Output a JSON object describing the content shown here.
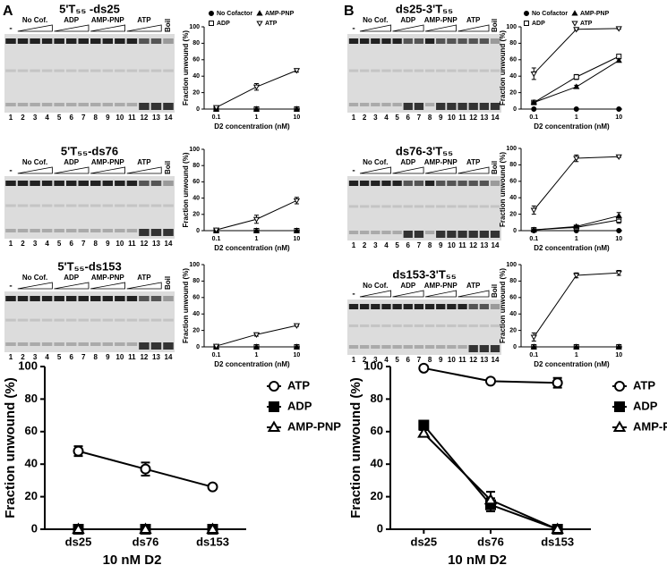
{
  "panels": [
    "A",
    "B"
  ],
  "gels": [
    {
      "title": "5'T₅₅ -ds25",
      "minus": "-",
      "groups": [
        "No Cof.",
        "ADP",
        "AMP-PNP",
        "ATP"
      ],
      "boil": "Boil",
      "lanes": [
        "1",
        "2",
        "3",
        "4",
        "5",
        "6",
        "7",
        "8",
        "9",
        "10",
        "11",
        "12",
        "13",
        "14"
      ]
    },
    {
      "title": "5'T₅₅-ds76",
      "minus": "-",
      "groups": [
        "No Cof.",
        "ADP",
        "AMP-PNP",
        "ATP"
      ],
      "boil": "Boil",
      "lanes": [
        "1",
        "2",
        "3",
        "4",
        "5",
        "6",
        "7",
        "8",
        "9",
        "10",
        "11",
        "12",
        "13",
        "14"
      ]
    },
    {
      "title": "5'T₅₅-ds153",
      "minus": "-",
      "groups": [
        "No Cof.",
        "ADP",
        "AMP-PNP",
        "ATP"
      ],
      "boil": "Boil",
      "lanes": [
        "1",
        "2",
        "3",
        "4",
        "5",
        "6",
        "7",
        "8",
        "9",
        "10",
        "11",
        "12",
        "13",
        "14"
      ]
    },
    {
      "title": "ds25-3'T₅₅",
      "minus": "-",
      "groups": [
        "No Cof.",
        "ADP",
        "AMP-PNP",
        "ATP"
      ],
      "boil": "Boil",
      "lanes": [
        "1",
        "2",
        "3",
        "4",
        "5",
        "6",
        "7",
        "8",
        "9",
        "10",
        "11",
        "12",
        "13",
        "14"
      ]
    },
    {
      "title": "ds76-3'T₅₅",
      "minus": "-",
      "groups": [
        "No Cof.",
        "ADP",
        "AMP-PNP",
        "ATP"
      ],
      "boil": "Boil",
      "lanes": [
        "1",
        "2",
        "3",
        "4",
        "5",
        "6",
        "7",
        "8",
        "9",
        "10",
        "11",
        "12",
        "13",
        "14"
      ]
    },
    {
      "title": "ds153-3'T₅₅",
      "minus": "-",
      "groups": [
        "No Cof.",
        "ADP",
        "AMP-PNP",
        "ATP"
      ],
      "boil": "Boil",
      "lanes": [
        "1",
        "2",
        "3",
        "4",
        "5",
        "6",
        "7",
        "8",
        "9",
        "10",
        "11",
        "12",
        "13",
        "14"
      ]
    }
  ],
  "chart_data": [
    {
      "type": "line",
      "xscale": "log",
      "legend": "top",
      "ylabel": "Fraction unwound (%)",
      "xlabel": "D2 concentration (nM)",
      "x": [
        0.1,
        1,
        10
      ],
      "xlim": [
        0.05,
        12
      ],
      "xticks": [
        0.1,
        1,
        10
      ],
      "ylim": [
        0,
        100
      ],
      "yticks": [
        0,
        20,
        40,
        60,
        80,
        100
      ],
      "series": [
        {
          "name": "No Cofactor",
          "color": "#000000",
          "marker": "filled-circle",
          "values": [
            0,
            0,
            0
          ]
        },
        {
          "name": "ADP",
          "color": "#000000",
          "marker": "open-square",
          "values": [
            0,
            0,
            0
          ]
        },
        {
          "name": "AMP-PNP",
          "color": "#000000",
          "marker": "filled-triangle",
          "values": [
            0,
            0,
            0
          ]
        },
        {
          "name": "ATP",
          "color": "#000000",
          "marker": "open-down-triangle",
          "values": [
            2,
            27,
            47
          ],
          "errors": [
            1,
            4,
            2
          ]
        }
      ]
    },
    {
      "type": "line",
      "xscale": "log",
      "ylabel": "Fraction unwound (%)",
      "xlabel": "D2 concentration (nM)",
      "x": [
        0.1,
        1,
        10
      ],
      "xlim": [
        0.05,
        12
      ],
      "xticks": [
        0.1,
        1,
        10
      ],
      "ylim": [
        0,
        100
      ],
      "yticks": [
        0,
        20,
        40,
        60,
        80,
        100
      ],
      "series": [
        {
          "name": "No Cofactor",
          "color": "#000000",
          "marker": "filled-circle",
          "values": [
            0,
            0,
            0
          ]
        },
        {
          "name": "ADP",
          "color": "#000000",
          "marker": "open-square",
          "values": [
            0,
            0,
            0
          ]
        },
        {
          "name": "AMP-PNP",
          "color": "#000000",
          "marker": "filled-triangle",
          "values": [
            0,
            0,
            0
          ]
        },
        {
          "name": "ATP",
          "color": "#000000",
          "marker": "open-down-triangle",
          "values": [
            1,
            14,
            37
          ],
          "errors": [
            1,
            5,
            4
          ]
        }
      ]
    },
    {
      "type": "line",
      "xscale": "log",
      "ylabel": "Fraction unwound (%)",
      "xlabel": "D2 concentration (nM)",
      "x": [
        0.1,
        1,
        10
      ],
      "xlim": [
        0.05,
        12
      ],
      "xticks": [
        0.1,
        1,
        10
      ],
      "ylim": [
        0,
        100
      ],
      "yticks": [
        0,
        20,
        40,
        60,
        80,
        100
      ],
      "series": [
        {
          "name": "No Cofactor",
          "color": "#000000",
          "marker": "filled-circle",
          "values": [
            0,
            0,
            0
          ]
        },
        {
          "name": "ADP",
          "color": "#000000",
          "marker": "open-square",
          "values": [
            0,
            0,
            0
          ]
        },
        {
          "name": "AMP-PNP",
          "color": "#000000",
          "marker": "filled-triangle",
          "values": [
            0,
            0,
            0
          ]
        },
        {
          "name": "ATP",
          "color": "#000000",
          "marker": "open-down-triangle",
          "values": [
            1,
            15,
            26
          ],
          "errors": [
            1,
            2,
            1
          ]
        }
      ]
    },
    {
      "type": "line",
      "xscale": "log",
      "legend": "top",
      "ylabel": "Fraction unwound (%)",
      "xlabel": "D2 concentration (nM)",
      "x": [
        0.1,
        1,
        10
      ],
      "xlim": [
        0.05,
        12
      ],
      "xticks": [
        0.1,
        1,
        10
      ],
      "ylim": [
        0,
        100
      ],
      "yticks": [
        0,
        20,
        40,
        60,
        80,
        100
      ],
      "series": [
        {
          "name": "No Cofactor",
          "color": "#000000",
          "marker": "filled-circle",
          "values": [
            0,
            0,
            0
          ]
        },
        {
          "name": "ADP",
          "color": "#000000",
          "marker": "open-square",
          "values": [
            8,
            39,
            64
          ],
          "errors": [
            1,
            3,
            2
          ]
        },
        {
          "name": "AMP-PNP",
          "color": "#000000",
          "marker": "filled-triangle",
          "values": [
            8,
            27,
            59
          ],
          "errors": [
            1,
            2,
            2
          ]
        },
        {
          "name": "ATP",
          "color": "#000000",
          "marker": "open-down-triangle",
          "values": [
            43,
            97,
            98
          ],
          "errors": [
            7,
            1,
            1
          ]
        }
      ]
    },
    {
      "type": "line",
      "xscale": "log",
      "ylabel": "Fraction unwound (%)",
      "xlabel": "D2 concentration (nM)",
      "x": [
        0.1,
        1,
        10
      ],
      "xlim": [
        0.05,
        12
      ],
      "xticks": [
        0.1,
        1,
        10
      ],
      "ylim": [
        0,
        100
      ],
      "yticks": [
        0,
        20,
        40,
        60,
        80,
        100
      ],
      "series": [
        {
          "name": "No Cofactor",
          "color": "#000000",
          "marker": "filled-circle",
          "values": [
            0,
            0,
            0
          ]
        },
        {
          "name": "ADP",
          "color": "#000000",
          "marker": "open-square",
          "values": [
            1,
            4,
            13
          ],
          "errors": [
            1,
            1,
            4
          ]
        },
        {
          "name": "AMP-PNP",
          "color": "#000000",
          "marker": "filled-triangle",
          "values": [
            1,
            5,
            18
          ],
          "errors": [
            1,
            1,
            4
          ]
        },
        {
          "name": "ATP",
          "color": "#000000",
          "marker": "open-down-triangle",
          "values": [
            25,
            88,
            90
          ],
          "errors": [
            5,
            4,
            1
          ]
        }
      ]
    },
    {
      "type": "line",
      "xscale": "log",
      "ylabel": "Fraction unwound (%)",
      "xlabel": "D2 concentration (nM)",
      "x": [
        0.1,
        1,
        10
      ],
      "xlim": [
        0.05,
        12
      ],
      "xticks": [
        0.1,
        1,
        10
      ],
      "ylim": [
        0,
        100
      ],
      "yticks": [
        0,
        20,
        40,
        60,
        80,
        100
      ],
      "series": [
        {
          "name": "No Cofactor",
          "color": "#000000",
          "marker": "filled-circle",
          "values": [
            0,
            0,
            0
          ]
        },
        {
          "name": "ADP",
          "color": "#000000",
          "marker": "open-square",
          "values": [
            0,
            0,
            0
          ]
        },
        {
          "name": "AMP-PNP",
          "color": "#000000",
          "marker": "filled-triangle",
          "values": [
            0,
            0,
            0
          ]
        },
        {
          "name": "ATP",
          "color": "#000000",
          "marker": "open-down-triangle",
          "values": [
            12,
            87,
            90
          ],
          "errors": [
            5,
            3,
            3
          ]
        }
      ]
    },
    {
      "type": "line",
      "legend": "right",
      "ylabel": "Fraction unwound (%)",
      "xlabel": "10 nM D2",
      "categories": [
        "ds25",
        "ds76",
        "ds153"
      ],
      "ylim": [
        0,
        100
      ],
      "yticks": [
        0,
        20,
        40,
        60,
        80,
        100
      ],
      "series": [
        {
          "name": "ATP",
          "color": "#000000",
          "marker": "open-circle",
          "values": [
            48,
            37,
            26
          ],
          "errors": [
            3,
            4,
            1
          ]
        },
        {
          "name": "ADP",
          "color": "#000000",
          "marker": "filled-square",
          "values": [
            0,
            0,
            0
          ]
        },
        {
          "name": "AMP-PNP",
          "color": "#000000",
          "marker": "open-triangle",
          "values": [
            0,
            0,
            0
          ]
        }
      ]
    },
    {
      "type": "line",
      "legend": "right",
      "ylabel": "Fraction unwound (%)",
      "xlabel": "10 nM D2",
      "categories": [
        "ds25",
        "ds76",
        "ds153"
      ],
      "ylim": [
        0,
        100
      ],
      "yticks": [
        0,
        20,
        40,
        60,
        80,
        100
      ],
      "series": [
        {
          "name": "ATP",
          "color": "#000000",
          "marker": "open-circle",
          "values": [
            99,
            91,
            90
          ],
          "errors": [
            1,
            1,
            3
          ]
        },
        {
          "name": "ADP",
          "color": "#000000",
          "marker": "filled-square",
          "values": [
            64,
            15,
            0
          ],
          "errors": [
            2,
            4,
            1
          ]
        },
        {
          "name": "AMP-PNP",
          "color": "#000000",
          "marker": "open-triangle",
          "values": [
            59,
            18,
            0
          ],
          "errors": [
            2,
            5,
            1
          ]
        }
      ]
    }
  ]
}
